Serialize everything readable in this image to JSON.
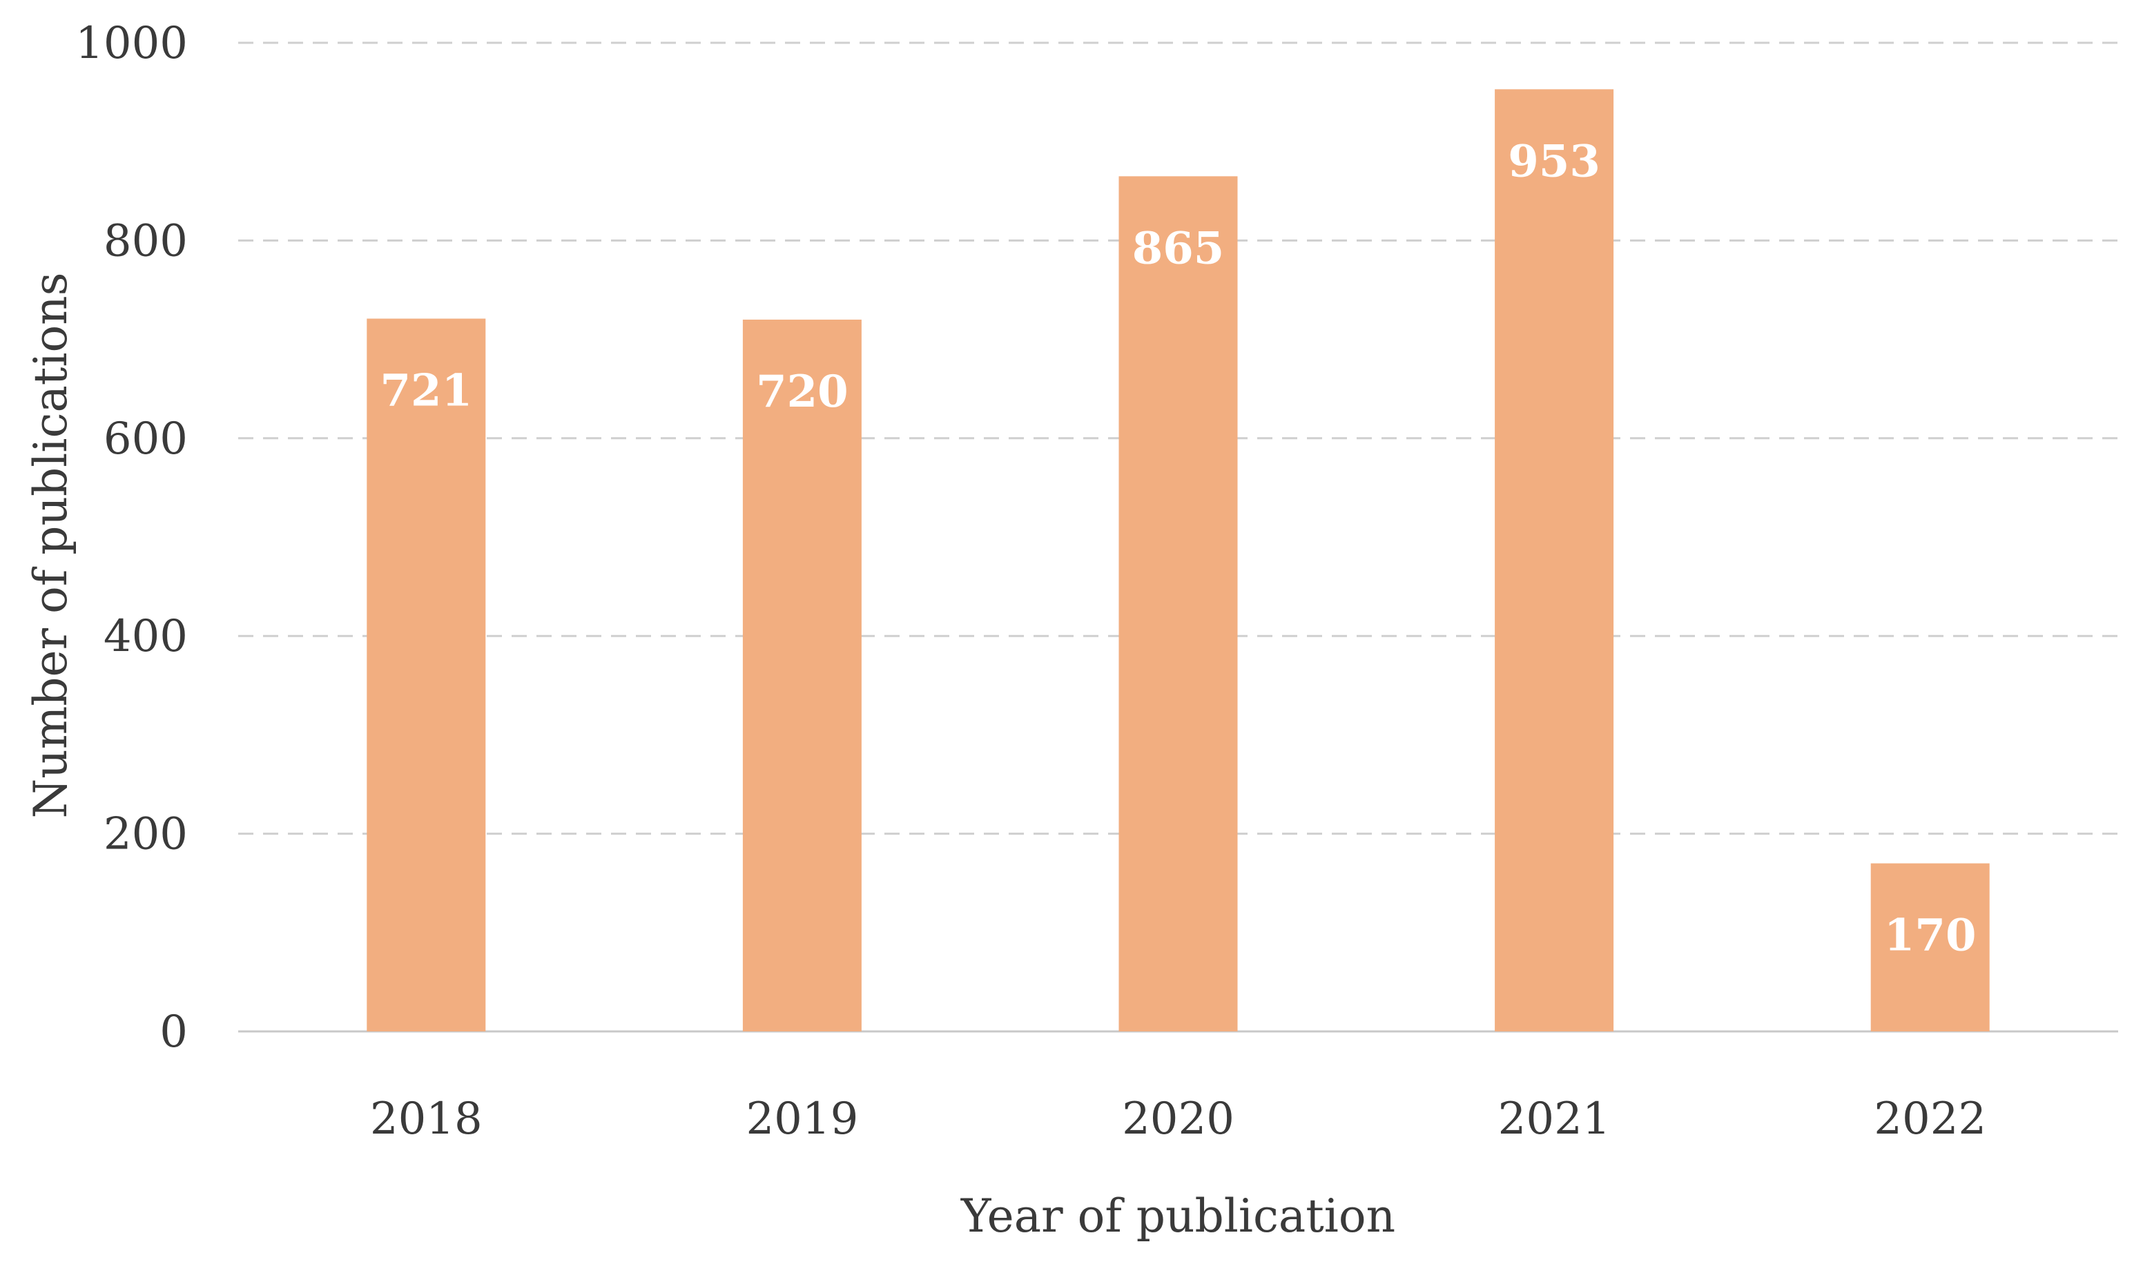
{
  "chart_data": {
    "type": "bar",
    "title": "",
    "xlabel": "Year of publication",
    "ylabel": "Number of publications",
    "categories": [
      "2018",
      "2019",
      "2020",
      "2021",
      "2022"
    ],
    "values": [
      721,
      720,
      865,
      953,
      170
    ],
    "data_labels": [
      "721",
      "720",
      "865",
      "953",
      "170"
    ],
    "ylim": [
      0,
      1000
    ],
    "yticks": [
      0,
      200,
      400,
      600,
      800,
      1000
    ],
    "ytick_labels": [
      "0",
      "200",
      "400",
      "600",
      "800",
      "1000"
    ],
    "grid": true,
    "legend": "none",
    "bar_color": "#f2ae80",
    "gridline_color": "#cfcfcf",
    "text_color": "#3a3a3a"
  }
}
